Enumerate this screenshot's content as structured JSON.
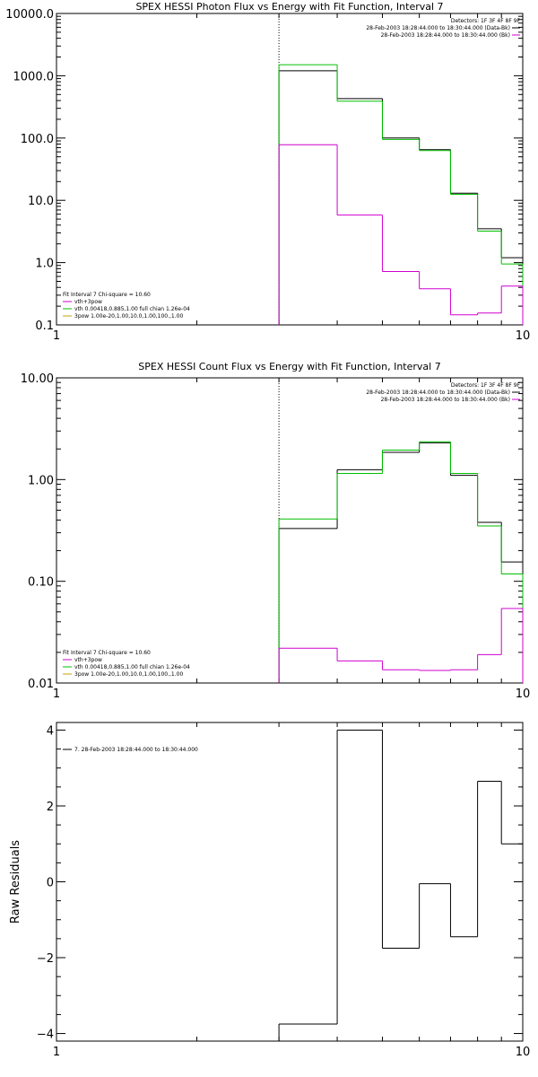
{
  "chart_data": [
    {
      "type": "line",
      "title": "SPEX HESSI Photon Flux vs Energy with Fit Function, Interval 7",
      "xlabel": "",
      "ylabel": "",
      "xscale": "log",
      "yscale": "log",
      "xlim": [
        1,
        10
      ],
      "ylim": [
        0.1,
        10000
      ],
      "x_tick_labels": [
        "1",
        "10"
      ],
      "y_tick_values": [
        0.1,
        1,
        10,
        100,
        1000,
        10000
      ],
      "y_tick_labels": [
        "0.1",
        "1.0",
        "10.0",
        "100.0",
        "1000.0",
        "10000.0"
      ],
      "vline_x": 3.0,
      "bin_edges": [
        3.0,
        4.0,
        5.0,
        6.0,
        7.0,
        8.0,
        9.0,
        10.0
      ],
      "header_lines": [
        "Detectors: 1F 3F 4F 8F 9F",
        "28-Feb-2003 18:28:44.000 to 18:30:44.000 (Data-Bk)",
        "28-Feb-2003 18:28:44.000 to 18:30:44.000 (Bk)"
      ],
      "header_colors": [
        "none",
        "#000000",
        "#d000d0"
      ],
      "legend_lines": [
        "Fit Interval  7    Chi-square = 10.60",
        "vth+3pow",
        "vth 0.00418,0.885,1.00  full chian 1.26e-04",
        "3pow 1.00e-20,1.00,10.0,1.00,100.,1.00"
      ],
      "legend_colors": [
        "none",
        "#d000d0",
        "#00c000",
        "#c8a000"
      ],
      "series": [
        {
          "name": "28-Feb-2003 18:28:44.000 to 18:30:44.000 (Data-Bk)",
          "color": "#000000",
          "values": [
            1200,
            430,
            100,
            65,
            13,
            3.5,
            1.2
          ]
        },
        {
          "name": "vth+3pow",
          "color": "#00c000",
          "values": [
            1500,
            390,
            95,
            63,
            12.5,
            3.2,
            0.95
          ]
        },
        {
          "name": "28-Feb-2003 18:28:44.000 to 18:30:44.000 (Bk)",
          "color": "#d000d0",
          "values": [
            78,
            5.8,
            0.72,
            0.38,
            0.145,
            0.155,
            0.42
          ]
        }
      ]
    },
    {
      "type": "line",
      "title": "SPEX HESSI Count Flux vs Energy with Fit Function, Interval 7",
      "xlabel": "",
      "ylabel": "",
      "xscale": "log",
      "yscale": "log",
      "xlim": [
        1,
        10
      ],
      "ylim": [
        0.01,
        10
      ],
      "x_tick_labels": [
        "1",
        "10"
      ],
      "y_tick_values": [
        0.01,
        0.1,
        1,
        10
      ],
      "y_tick_labels": [
        "0.01",
        "0.10",
        "1.00",
        "10.00"
      ],
      "vline_x": 3.0,
      "bin_edges": [
        3.0,
        4.0,
        5.0,
        6.0,
        7.0,
        8.0,
        9.0,
        10.0
      ],
      "header_lines": [
        "Detectors: 1F 3F 4F 8F 9F",
        "28-Feb-2003 18:28:44.000 to 18:30:44.000 (Data-Bk)",
        "28-Feb-2003 18:28:44.000 to 18:30:44.000 (Bk)"
      ],
      "header_colors": [
        "none",
        "#000000",
        "#d000d0"
      ],
      "legend_lines": [
        "Fit Interval  7    Chi-square = 10.60",
        "vth+3pow",
        "vth 0.00418,0.885,1.00  full chian 1.26e-04",
        "3pow 1.00e-20,1.00,10.0,1.00,100.,1.00"
      ],
      "legend_colors": [
        "none",
        "#d000d0",
        "#00c000",
        "#c8a000"
      ],
      "series": [
        {
          "name": "28-Feb-2003 18:28:44.000 to 18:30:44.000 (Data-Bk)",
          "color": "#000000",
          "values": [
            0.33,
            1.25,
            1.85,
            2.3,
            1.1,
            0.38,
            0.155
          ]
        },
        {
          "name": "vth+3pow",
          "color": "#00c000",
          "values": [
            0.41,
            1.15,
            1.95,
            2.35,
            1.15,
            0.35,
            0.118
          ]
        },
        {
          "name": "28-Feb-2003 18:28:44.000 to 18:30:44.000 (Bk)",
          "color": "#d000d0",
          "values": [
            0.022,
            0.0165,
            0.0135,
            0.0133,
            0.0135,
            0.019,
            0.054
          ]
        }
      ]
    },
    {
      "type": "line",
      "title": "",
      "xlabel": "",
      "ylabel": "Raw Residuals",
      "xscale": "log",
      "yscale": "linear",
      "xlim": [
        1,
        10
      ],
      "ylim": [
        -4.2,
        4.2
      ],
      "x_tick_labels": [
        "1",
        "10"
      ],
      "y_tick_values": [
        -4,
        -2,
        0,
        2,
        4
      ],
      "y_tick_labels": [
        "−4",
        "−2",
        "0",
        "2",
        "4"
      ],
      "bin_edges": [
        3.0,
        4.0,
        5.0,
        6.0,
        7.0,
        8.0,
        9.0,
        10.0
      ],
      "legend_lines": [
        "7. 28-Feb-2003 18:28:44.000 to 18:30:44.000"
      ],
      "legend_colors": [
        "#000000"
      ],
      "series": [
        {
          "name": "7. 28-Feb-2003 18:28:44.000 to 18:30:44.000",
          "color": "#000000",
          "values": [
            -3.75,
            4.0,
            -1.75,
            -0.05,
            -1.45,
            2.65,
            1.0
          ]
        }
      ]
    }
  ]
}
